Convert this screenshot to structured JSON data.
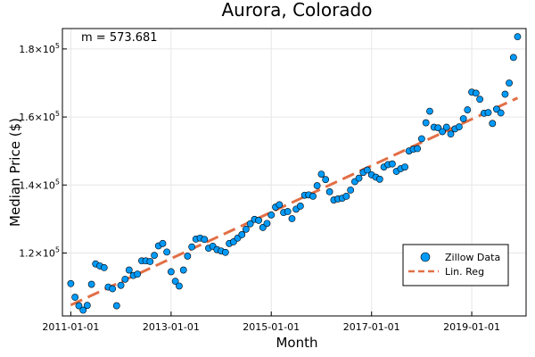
{
  "chart_data": {
    "type": "scatter",
    "title": "Aurora, Colorado",
    "xlabel": "Month",
    "ylabel": "Median Price ($)",
    "annotation": "m = 573.681",
    "x_start": "2011-01-01",
    "x_ticks": [
      "2011-01-01",
      "2013-01-01",
      "2015-01-01",
      "2017-01-01",
      "2019-01-01"
    ],
    "y_ticks": [
      {
        "value": 120000,
        "base": "1.2×10",
        "exp": "5"
      },
      {
        "value": 140000,
        "base": "1.4×10",
        "exp": "5"
      },
      {
        "value": 160000,
        "base": "1.6×10",
        "exp": "5"
      },
      {
        "value": 180000,
        "base": "1.8×10",
        "exp": "5"
      }
    ],
    "xlim": [
      "2010-11-01",
      "2020-02-01"
    ],
    "ylim": [
      101500,
      186000
    ],
    "grid": true,
    "legend_position": "bottom-right",
    "series": [
      {
        "name": "Zillow Data",
        "kind": "scatter",
        "color": "#009af9",
        "x": [
          "2011-01-01",
          "2011-02-01",
          "2011-03-01",
          "2011-04-01",
          "2011-05-01",
          "2011-06-01",
          "2011-07-01",
          "2011-08-01",
          "2011-09-01",
          "2011-10-01",
          "2011-11-01",
          "2011-12-01",
          "2012-01-01",
          "2012-02-01",
          "2012-03-01",
          "2012-04-01",
          "2012-05-01",
          "2012-06-01",
          "2012-07-01",
          "2012-08-01",
          "2012-09-01",
          "2012-10-01",
          "2012-11-01",
          "2012-12-01",
          "2013-01-01",
          "2013-02-01",
          "2013-03-01",
          "2013-04-01",
          "2013-05-01",
          "2013-06-01",
          "2013-07-01",
          "2013-08-01",
          "2013-09-01",
          "2013-10-01",
          "2013-11-01",
          "2013-12-01",
          "2014-01-01",
          "2014-02-01",
          "2014-03-01",
          "2014-04-01",
          "2014-05-01",
          "2014-06-01",
          "2014-07-01",
          "2014-08-01",
          "2014-09-01",
          "2014-10-01",
          "2014-11-01",
          "2014-12-01",
          "2015-01-01",
          "2015-02-01",
          "2015-03-01",
          "2015-04-01",
          "2015-05-01",
          "2015-06-01",
          "2015-07-01",
          "2015-08-01",
          "2015-09-01",
          "2015-10-01",
          "2015-11-01",
          "2015-12-01",
          "2016-01-01",
          "2016-02-01",
          "2016-03-01",
          "2016-04-01",
          "2016-05-01",
          "2016-06-01",
          "2016-07-01",
          "2016-08-01",
          "2016-09-01",
          "2016-10-01",
          "2016-11-01",
          "2016-12-01",
          "2017-01-01",
          "2017-02-01",
          "2017-03-01",
          "2017-04-01",
          "2017-05-01",
          "2017-06-01",
          "2017-07-01",
          "2017-08-01",
          "2017-09-01",
          "2017-10-01",
          "2017-11-01",
          "2017-12-01",
          "2018-01-01",
          "2018-02-01",
          "2018-03-01",
          "2018-04-01",
          "2018-05-01",
          "2018-06-01",
          "2018-07-01",
          "2018-08-01",
          "2018-09-01",
          "2018-10-01",
          "2018-11-01",
          "2018-12-01",
          "2019-01-01",
          "2019-02-01",
          "2019-03-01",
          "2019-04-01",
          "2019-05-01",
          "2019-06-01",
          "2019-07-01",
          "2019-08-01",
          "2019-09-01",
          "2019-10-01",
          "2019-11-01",
          "2019-12-01"
        ],
        "y": [
          111000,
          107000,
          104500,
          103200,
          104600,
          110800,
          116800,
          116200,
          115700,
          110000,
          109500,
          104500,
          110500,
          112300,
          115000,
          113400,
          113800,
          117700,
          117700,
          117500,
          119300,
          122100,
          122800,
          120300,
          114500,
          111700,
          110300,
          115000,
          119100,
          121800,
          124100,
          124400,
          124000,
          121400,
          122000,
          121000,
          120600,
          120200,
          122800,
          123300,
          124400,
          125400,
          127000,
          128600,
          129900,
          129600,
          127500,
          128700,
          131200,
          133500,
          134200,
          131900,
          132200,
          130100,
          132900,
          133800,
          137000,
          137100,
          136700,
          139800,
          143200,
          141600,
          138000,
          135600,
          135900,
          136100,
          136700,
          138500,
          141000,
          142000,
          143700,
          144400,
          143000,
          142300,
          141700,
          145300,
          146000,
          146200,
          144000,
          144800,
          145300,
          150000,
          150500,
          150700,
          153600,
          158300,
          161700,
          157000,
          156800,
          155700,
          157000,
          155000,
          156500,
          157100,
          159500,
          162100,
          167300,
          167000,
          165200,
          161100,
          161300,
          158100,
          162300,
          161200,
          166700,
          170000,
          177500,
          183600
        ]
      },
      {
        "name": "Lin. Reg",
        "kind": "line",
        "color": "#e26f46",
        "x": [
          "2011-01-01",
          "2019-12-01"
        ],
        "y": [
          104700,
          165600
        ]
      }
    ]
  }
}
